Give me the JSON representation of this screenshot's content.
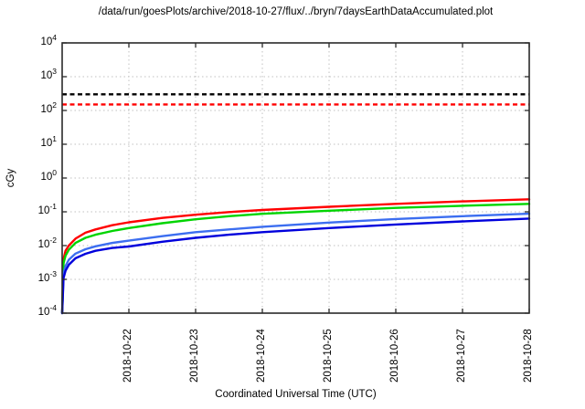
{
  "chart_data": {
    "type": "line",
    "title": "/data/run/goesPlots/archive/2018-10-27/flux/../bryn/7daysEarthDataAccumulated.plot",
    "xlabel": "Coordinated Universal Time (UTC)",
    "ylabel": "cGy",
    "y_scale": "log",
    "ylim": [
      0.0001,
      10000
    ],
    "y_tick_exponents": [
      4,
      3,
      2,
      1,
      0,
      -1,
      -2,
      -3,
      -4
    ],
    "x_axis_start": "2018-10-21",
    "x_axis_end": "2018-10-28",
    "x_tick_labels": [
      "2018-10-22",
      "2018-10-23",
      "2018-10-24",
      "2018-10-25",
      "2018-10-26",
      "2018-10-27",
      "2018-10-28"
    ],
    "x_tick_days": [
      1,
      2,
      3,
      4,
      5,
      6,
      7
    ],
    "xlim_days": [
      0,
      7
    ],
    "grid": true,
    "legend": "none",
    "threshold_lines": [
      {
        "name": "black-dashed-limit",
        "value": 300,
        "color": "#000000",
        "style": "dashed"
      },
      {
        "name": "red-dashed-limit",
        "value": 150,
        "color": "#ff0000",
        "style": "dashed"
      }
    ],
    "series": [
      {
        "name": "red-curve",
        "color": "#ff0000",
        "points": [
          [
            0,
            0.0001
          ],
          [
            0.02,
            0.004
          ],
          [
            0.05,
            0.007
          ],
          [
            0.1,
            0.01
          ],
          [
            0.2,
            0.016
          ],
          [
            0.35,
            0.024
          ],
          [
            0.5,
            0.03
          ],
          [
            0.75,
            0.04
          ],
          [
            1,
            0.049
          ],
          [
            1.5,
            0.066
          ],
          [
            2,
            0.082
          ],
          [
            2.5,
            0.098
          ],
          [
            3,
            0.113
          ],
          [
            4,
            0.141
          ],
          [
            5,
            0.172
          ],
          [
            6,
            0.203
          ],
          [
            7,
            0.235
          ]
        ]
      },
      {
        "name": "green-curve",
        "color": "#00d400",
        "points": [
          [
            0,
            0.0001
          ],
          [
            0.02,
            0.003
          ],
          [
            0.05,
            0.005
          ],
          [
            0.1,
            0.0075
          ],
          [
            0.2,
            0.012
          ],
          [
            0.35,
            0.017
          ],
          [
            0.5,
            0.021
          ],
          [
            0.75,
            0.027
          ],
          [
            1,
            0.033
          ],
          [
            1.5,
            0.046
          ],
          [
            2,
            0.06
          ],
          [
            2.5,
            0.074
          ],
          [
            3,
            0.087
          ],
          [
            4,
            0.108
          ],
          [
            5,
            0.131
          ],
          [
            6,
            0.151
          ],
          [
            7,
            0.172
          ]
        ]
      },
      {
        "name": "light-blue-curve",
        "color": "#3c6ef0",
        "points": [
          [
            0,
            0.0001
          ],
          [
            0.02,
            0.0015
          ],
          [
            0.05,
            0.0025
          ],
          [
            0.1,
            0.0038
          ],
          [
            0.2,
            0.0058
          ],
          [
            0.35,
            0.0078
          ],
          [
            0.5,
            0.0095
          ],
          [
            0.75,
            0.012
          ],
          [
            1,
            0.014
          ],
          [
            1.5,
            0.019
          ],
          [
            2,
            0.025
          ],
          [
            2.5,
            0.03
          ],
          [
            3,
            0.036
          ],
          [
            4,
            0.048
          ],
          [
            5,
            0.061
          ],
          [
            6,
            0.074
          ],
          [
            7,
            0.088
          ]
        ]
      },
      {
        "name": "dark-blue-curve",
        "color": "#0000dc",
        "points": [
          [
            0,
            0.0001
          ],
          [
            0.02,
            0.0011
          ],
          [
            0.05,
            0.0018
          ],
          [
            0.1,
            0.0027
          ],
          [
            0.2,
            0.0042
          ],
          [
            0.35,
            0.0057
          ],
          [
            0.5,
            0.007
          ],
          [
            0.75,
            0.0085
          ],
          [
            1,
            0.0094
          ],
          [
            1.5,
            0.013
          ],
          [
            2,
            0.017
          ],
          [
            2.5,
            0.021
          ],
          [
            3,
            0.025
          ],
          [
            4,
            0.033
          ],
          [
            5,
            0.042
          ],
          [
            6,
            0.052
          ],
          [
            7,
            0.063
          ]
        ]
      }
    ],
    "style": {
      "grid_color": "#c0c0c0",
      "axis_color": "#2a2a2a",
      "curve_width": 2.4,
      "threshold_width": 2.4
    }
  }
}
